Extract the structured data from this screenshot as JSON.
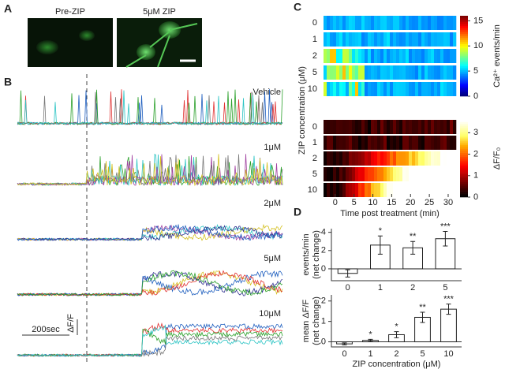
{
  "panel_a": {
    "label": "A",
    "images": [
      "Pre-ZIP",
      "5μM ZIP"
    ]
  },
  "panel_b": {
    "label": "B",
    "traces": [
      "Vehicle",
      "1μM",
      "2μM",
      "5μM",
      "10μM"
    ],
    "scale_time": "200sec",
    "scale_amp": "ΔF/F"
  },
  "panel_c": {
    "label": "C",
    "rows": [
      "0",
      "1",
      "2",
      "5",
      "10"
    ],
    "y_label": "ZIP concentration (μM)",
    "x_label": "Time post treatment (min)",
    "xlim": [
      -3.1,
      32.1
    ],
    "xticks": [
      0,
      5,
      10,
      15,
      20,
      25,
      30
    ],
    "colorbars": [
      {
        "label": "Ca²⁺ events/min",
        "lim": [
          0,
          16
        ],
        "ticks": [
          0,
          5,
          10,
          15
        ]
      },
      {
        "label": "ΔF/F₀",
        "lim": [
          0,
          3.6
        ],
        "ticks": [
          0,
          1,
          2,
          3
        ]
      }
    ]
  },
  "panel_d": {
    "label": "D"
  },
  "chart_data": [
    {
      "type": "bar",
      "y_label": [
        "events/min",
        "(net change)"
      ],
      "categories": [
        "0",
        "1",
        "2",
        "5"
      ],
      "values": [
        -0.5,
        2.6,
        2.3,
        3.3
      ],
      "errors": [
        0.4,
        1.0,
        0.7,
        0.8
      ],
      "significance": [
        null,
        "*",
        "**",
        "***"
      ],
      "ylim": [
        -1.3,
        4.4
      ],
      "yticks": [
        0,
        2,
        4
      ],
      "color": "#ffffff"
    },
    {
      "type": "bar",
      "y_label": [
        "mean ΔF/F",
        "(net change)"
      ],
      "x_label": "ZIP concentration (μM)",
      "categories": [
        "0",
        "1",
        "2",
        "5",
        "10"
      ],
      "values": [
        -0.1,
        0.07,
        0.35,
        1.2,
        1.6
      ],
      "errors": [
        0.05,
        0.05,
        0.15,
        0.25,
        0.25
      ],
      "significance": [
        null,
        "*",
        "*",
        "**",
        "***"
      ],
      "ylim": [
        -0.25,
        2.3
      ],
      "yticks": [
        0,
        1,
        2
      ],
      "color": "#ffffff"
    }
  ]
}
